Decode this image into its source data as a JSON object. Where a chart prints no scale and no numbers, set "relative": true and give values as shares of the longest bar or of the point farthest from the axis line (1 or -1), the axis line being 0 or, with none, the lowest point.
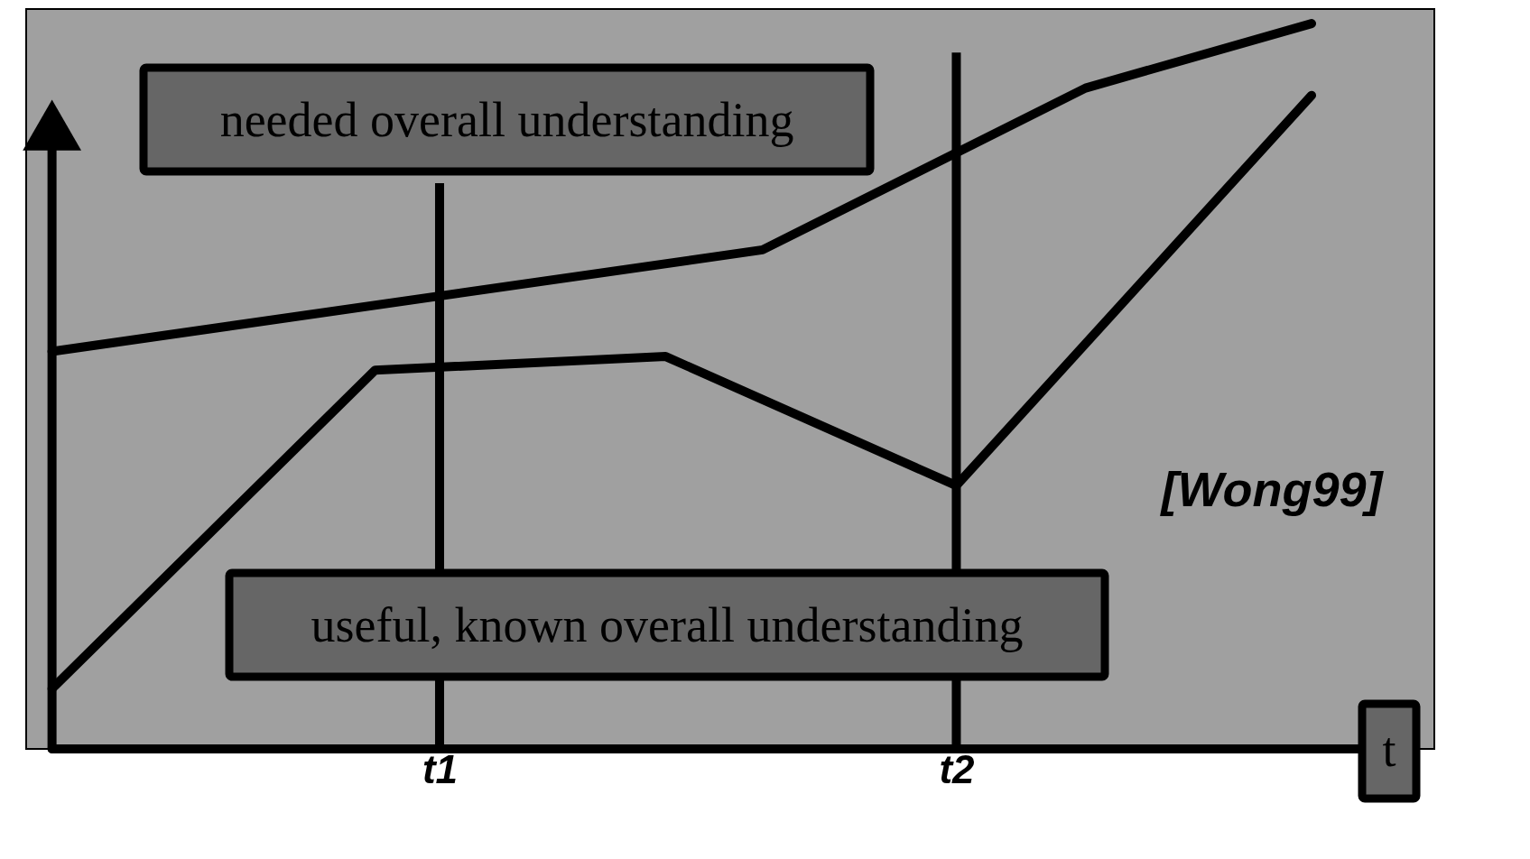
{
  "chart_data": {
    "type": "line",
    "relative": true,
    "xlabel": "t",
    "categories": [
      null,
      null,
      null,
      null,
      null,
      null,
      null,
      null,
      null,
      null,
      null,
      null,
      "t1",
      null,
      null,
      null,
      null,
      null,
      null,
      null,
      null,
      null,
      null,
      null,
      null,
      null,
      null,
      null,
      "t2",
      null,
      null,
      null,
      null,
      null,
      null,
      null,
      null,
      null,
      null,
      null,
      null
    ],
    "series": [
      {
        "name": "needed overall understanding",
        "color": "#000000",
        "values": [
          0.548,
          null,
          null,
          null,
          null,
          null,
          null,
          null,
          null,
          null,
          null,
          null,
          null,
          null,
          null,
          null,
          null,
          null,
          null,
          null,
          null,
          null,
          0.688,
          null,
          null,
          null,
          null,
          null,
          null,
          null,
          null,
          null,
          0.911,
          null,
          null,
          null,
          null,
          null,
          null,
          1.0,
          null
        ]
      },
      {
        "name": "useful, known overall understanding",
        "color": "#000000",
        "values": [
          0.083,
          null,
          null,
          null,
          null,
          null,
          null,
          null,
          null,
          null,
          0.522,
          null,
          null,
          null,
          null,
          null,
          null,
          null,
          null,
          0.541,
          null,
          null,
          null,
          null,
          null,
          null,
          null,
          null,
          0.363,
          null,
          null,
          null,
          null,
          null,
          null,
          null,
          null,
          null,
          null,
          0.901,
          null
        ]
      }
    ],
    "tick_labels": "x",
    "ref_lines": [
      {
        "axis": "x",
        "value": "t1",
        "color": "#000000"
      },
      {
        "axis": "x",
        "value": "t2",
        "color": "#000000"
      }
    ],
    "annotations": [
      "[Wong99]"
    ],
    "grid": false,
    "line_style": "solid"
  }
}
